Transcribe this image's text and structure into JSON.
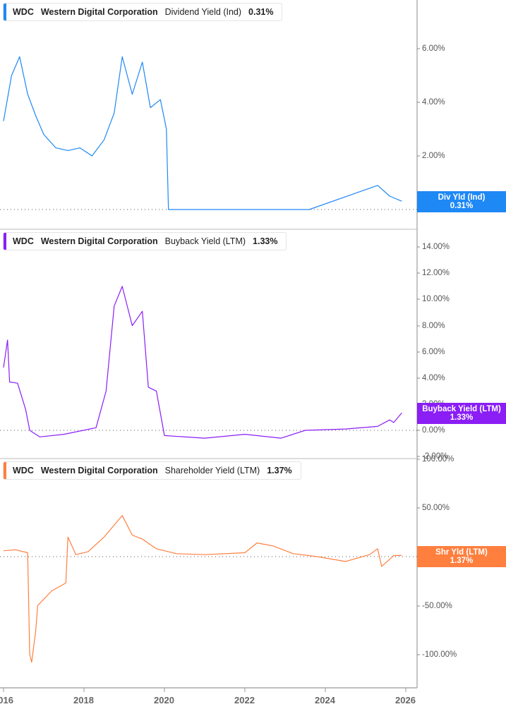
{
  "chart_data": [
    {
      "type": "line",
      "title": "WDC Western Digital Corporation Dividend Yield (Ind) 0.31%",
      "series": [
        {
          "name": "Dividend Yield (Ind)",
          "color": "#1e88f5",
          "current_value": "0.31%",
          "x": [
            2016.0,
            2016.2,
            2016.4,
            2016.6,
            2016.8,
            2017.0,
            2017.3,
            2017.6,
            2017.9,
            2018.2,
            2018.5,
            2018.75,
            2018.95,
            2019.2,
            2019.45,
            2019.65,
            2019.9,
            2020.05,
            2020.1,
            2021.0,
            2022.0,
            2023.0,
            2023.6,
            2025.3,
            2025.6,
            2025.9
          ],
          "values": [
            3.3,
            5.0,
            5.7,
            4.3,
            3.5,
            2.8,
            2.3,
            2.2,
            2.3,
            2.0,
            2.6,
            3.6,
            5.7,
            4.3,
            5.5,
            3.8,
            4.1,
            3.0,
            0.0,
            0.0,
            0.0,
            0.0,
            0.0,
            0.9,
            0.5,
            0.31
          ]
        }
      ],
      "xlabel": "",
      "ylabel": "",
      "y_ticks": [
        "0.00%",
        "2.00%",
        "4.00%",
        "6.00%"
      ],
      "ylim": [
        0,
        7.8
      ],
      "value_tag": {
        "label": "Div Yld (Ind)",
        "value": "0.31%"
      }
    },
    {
      "type": "line",
      "title": "WDC Western Digital Corporation Buyback Yield (LTM) 1.33%",
      "series": [
        {
          "name": "Buyback Yield (LTM)",
          "color": "#8a1ef5",
          "current_value": "1.33%",
          "x": [
            2016.0,
            2016.1,
            2016.15,
            2016.35,
            2016.55,
            2016.65,
            2016.9,
            2017.5,
            2018.3,
            2018.55,
            2018.75,
            2018.95,
            2019.2,
            2019.45,
            2019.6,
            2019.8,
            2020.0,
            2021.0,
            2022.0,
            2022.9,
            2023.5,
            2024.5,
            2025.3,
            2025.6,
            2025.7,
            2025.9
          ],
          "values": [
            4.8,
            6.9,
            3.7,
            3.6,
            1.6,
            0.0,
            -0.5,
            -0.3,
            0.2,
            3.0,
            9.5,
            11.0,
            8.0,
            9.1,
            3.3,
            3.0,
            -0.4,
            -0.6,
            -0.3,
            -0.6,
            0.0,
            0.1,
            0.3,
            0.8,
            0.6,
            1.33
          ]
        }
      ],
      "xlabel": "",
      "ylabel": "",
      "y_ticks": [
        "-2.00%",
        "0.00%",
        "2.00%",
        "4.00%",
        "6.00%",
        "8.00%",
        "10.00%",
        "12.00%",
        "14.00%"
      ],
      "ylim": [
        -2,
        15
      ],
      "value_tag": {
        "label": "Buyback Yield (LTM)",
        "value": "1.33%"
      }
    },
    {
      "type": "line",
      "title": "WDC Western Digital Corporation Shareholder Yield (LTM) 1.37%",
      "series": [
        {
          "name": "Shareholder Yield (LTM)",
          "color": "#ff7f3f",
          "current_value": "1.37%",
          "x": [
            2016.0,
            2016.3,
            2016.6,
            2016.65,
            2016.7,
            2016.8,
            2016.85,
            2017.2,
            2017.55,
            2017.6,
            2017.8,
            2018.1,
            2018.5,
            2018.95,
            2019.2,
            2019.45,
            2019.8,
            2020.3,
            2021.0,
            2022.0,
            2022.3,
            2022.7,
            2023.2,
            2023.8,
            2024.5,
            2025.1,
            2025.3,
            2025.4,
            2025.7,
            2025.9
          ],
          "values": [
            6,
            7,
            4,
            -100,
            -108,
            -76,
            -50,
            -35,
            -27,
            20,
            2,
            5,
            20,
            42,
            22,
            18,
            8,
            3,
            2,
            4,
            14,
            11,
            3,
            0,
            -5,
            2,
            8,
            -10,
            1,
            1.37
          ]
        }
      ],
      "xlabel": "",
      "ylabel": "",
      "y_ticks": [
        "-100.00%",
        "-50.00%",
        "0.00%",
        "50.00%",
        "100.00%"
      ],
      "ylim": [
        -115,
        100
      ],
      "value_tag": {
        "label": "Shr Yld (LTM)",
        "value": "1.37%"
      }
    }
  ],
  "legends": [
    {
      "ticker": "WDC",
      "company": "Western Digital Corporation",
      "metric": "Dividend Yield (Ind)",
      "value": "0.31%",
      "color": "#1e88f5"
    },
    {
      "ticker": "WDC",
      "company": "Western Digital Corporation",
      "metric": "Buyback Yield (LTM)",
      "value": "1.33%",
      "color": "#8a1ef5"
    },
    {
      "ticker": "WDC",
      "company": "Western Digital Corporation",
      "metric": "Shareholder Yield (LTM)",
      "value": "1.37%",
      "color": "#ff7f3f"
    }
  ],
  "panel1": {
    "ticks": {
      "t0": "0.00%",
      "t2": "2.00%",
      "t4": "4.00%",
      "t6": "6.00%"
    },
    "tag": {
      "label": "Div Yld (Ind)",
      "value": "0.31%"
    }
  },
  "panel2": {
    "ticks": {
      "tm2": "-2.00%",
      "t0": "0.00%",
      "t2": "2.00%",
      "t4": "4.00%",
      "t6": "6.00%",
      "t8": "8.00%",
      "t10": "10.00%",
      "t12": "12.00%",
      "t14": "14.00%"
    },
    "tag": {
      "label": "Buyback Yield (LTM)",
      "value": "1.33%"
    }
  },
  "panel3": {
    "ticks": {
      "t100": "100.00%",
      "t50": "50.00%",
      "t0": "0.00%",
      "tm50": "-50.00%",
      "tm100": "-100.00%"
    },
    "tag": {
      "label": "Shr Yld (LTM)",
      "value": "1.37%"
    }
  },
  "x_axis": {
    "labels": [
      "2016",
      "2018",
      "2020",
      "2022",
      "2024",
      "2026"
    ]
  },
  "colors": {
    "dividend": "#1e88f5",
    "buyback": "#8a1ef5",
    "shareholder": "#ff7f3f",
    "axis": "#888888",
    "text": "#555555"
  }
}
